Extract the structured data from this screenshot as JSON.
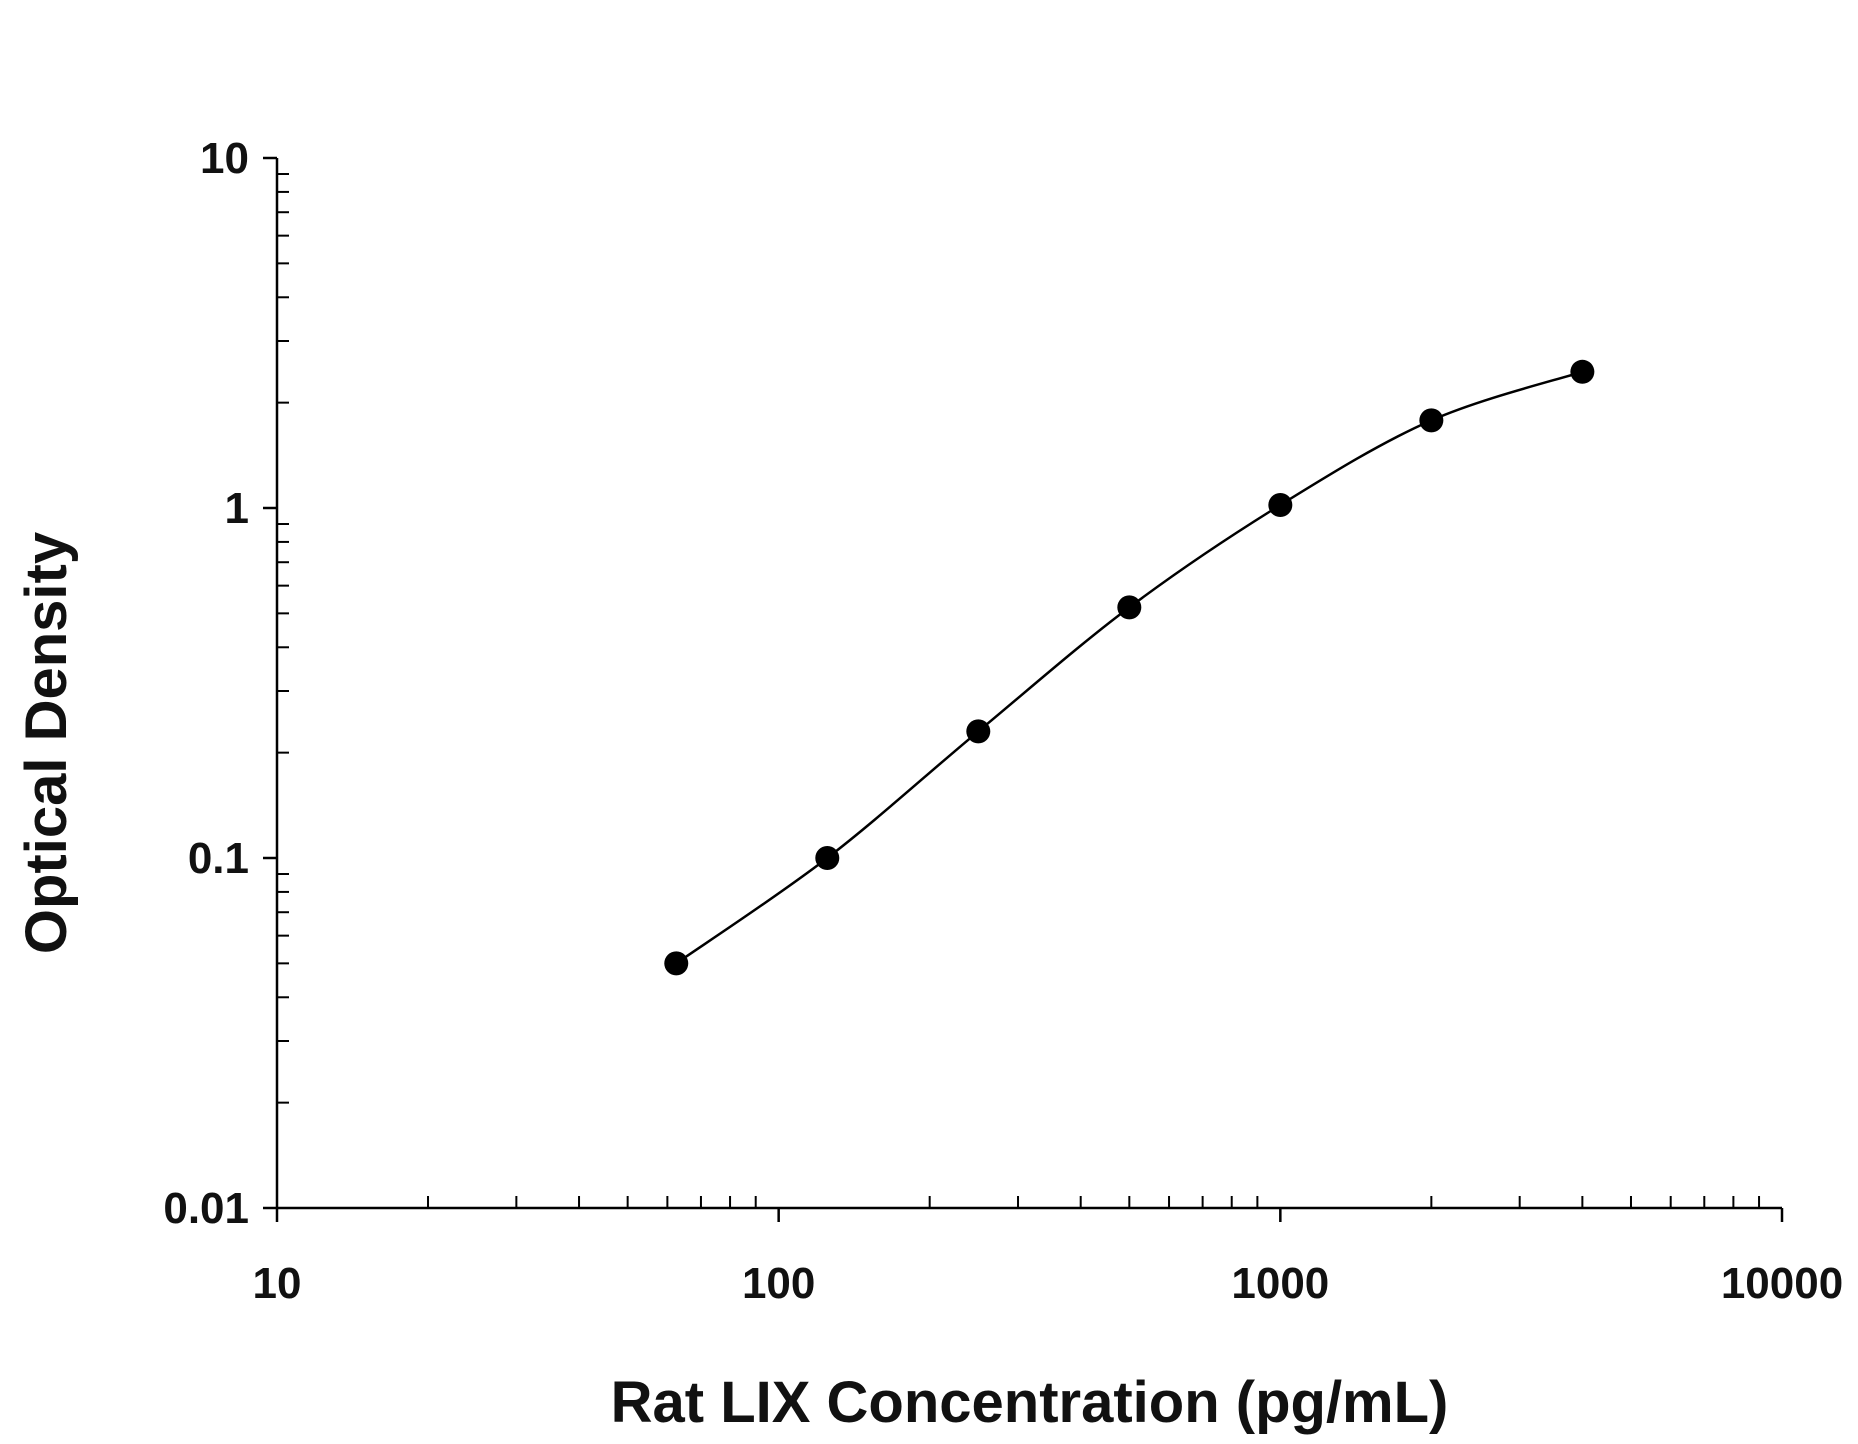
{
  "chart_data": {
    "type": "scatter",
    "title": "",
    "xlabel": "Rat LIX Concentration (pg/mL)",
    "ylabel": "Optical Density",
    "xscale": "log",
    "yscale": "log",
    "xlim": [
      10,
      10000
    ],
    "ylim": [
      0.01,
      10
    ],
    "x_ticks": [
      "10",
      "100",
      "1000",
      "10000"
    ],
    "y_ticks": [
      "0.01",
      "0.1",
      "1",
      "10"
    ],
    "grid": false,
    "legend": "none",
    "series": [
      {
        "x": [
          62.5,
          125,
          250,
          500,
          1000,
          2000,
          4000
        ],
        "values": [
          0.05,
          0.1,
          0.23,
          0.52,
          1.02,
          1.78,
          2.45
        ],
        "fit_curve": true
      }
    ],
    "colors": {
      "marker": "#000000",
      "line": "#000000",
      "axis": "#000000"
    }
  }
}
